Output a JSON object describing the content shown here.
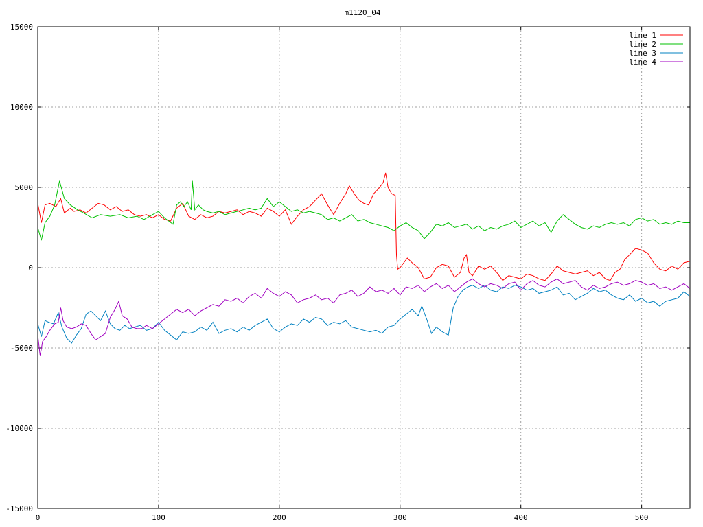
{
  "chart_data": {
    "type": "line",
    "title": "m1120_04",
    "xlabel": "",
    "ylabel": "",
    "xlim": [
      0,
      540
    ],
    "ylim": [
      -15000,
      15000
    ],
    "xticks": [
      0,
      100,
      200,
      300,
      400,
      500
    ],
    "yticks": [
      -15000,
      -10000,
      -5000,
      0,
      5000,
      10000,
      15000
    ],
    "grid": true,
    "legend_position": "top-right",
    "series": [
      {
        "name": "line 1",
        "color": "#ff0000",
        "x": [
          0,
          3,
          6,
          10,
          15,
          19,
          22,
          27,
          30,
          35,
          40,
          45,
          50,
          55,
          60,
          65,
          70,
          75,
          80,
          85,
          90,
          95,
          100,
          105,
          110,
          115,
          120,
          125,
          130,
          135,
          140,
          145,
          150,
          155,
          160,
          165,
          170,
          175,
          180,
          185,
          190,
          195,
          200,
          205,
          210,
          215,
          220,
          225,
          230,
          235,
          240,
          245,
          250,
          255,
          258,
          262,
          266,
          270,
          274,
          278,
          282,
          286,
          288,
          290,
          293,
          296,
          297,
          298,
          300,
          303,
          306,
          310,
          315,
          320,
          325,
          330,
          335,
          340,
          345,
          350,
          353,
          355,
          357,
          360,
          365,
          370,
          375,
          380,
          385,
          390,
          395,
          400,
          405,
          410,
          415,
          420,
          425,
          430,
          435,
          440,
          445,
          450,
          455,
          460,
          465,
          470,
          474,
          478,
          482,
          486,
          490,
          495,
          500,
          505,
          510,
          515,
          520,
          525,
          530,
          535,
          540
        ],
        "values": [
          4000,
          2800,
          3900,
          4000,
          3800,
          4300,
          3400,
          3700,
          3500,
          3600,
          3400,
          3700,
          4000,
          3900,
          3600,
          3800,
          3500,
          3600,
          3300,
          3200,
          3300,
          3100,
          3300,
          3000,
          2900,
          3700,
          4000,
          3200,
          3000,
          3300,
          3100,
          3200,
          3500,
          3400,
          3500,
          3600,
          3300,
          3500,
          3400,
          3200,
          3700,
          3500,
          3200,
          3600,
          2700,
          3200,
          3600,
          3800,
          4200,
          4600,
          3900,
          3300,
          4000,
          4600,
          5100,
          4600,
          4200,
          4000,
          3900,
          4600,
          4900,
          5300,
          5900,
          5000,
          4600,
          4500,
          800,
          -100,
          0,
          300,
          600,
          300,
          0,
          -700,
          -600,
          0,
          200,
          100,
          -600,
          -300,
          600,
          800,
          -300,
          -500,
          100,
          -100,
          100,
          -300,
          -800,
          -500,
          -600,
          -700,
          -400,
          -500,
          -700,
          -800,
          -400,
          100,
          -200,
          -300,
          -400,
          -300,
          -200,
          -500,
          -300,
          -700,
          -800,
          -300,
          -100,
          500,
          800,
          1200,
          1100,
          900,
          300,
          -100,
          -200,
          100,
          -100,
          300,
          400
        ]
      },
      {
        "name": "line 2",
        "color": "#00c000",
        "x": [
          0,
          3,
          6,
          10,
          14,
          18,
          22,
          27,
          33,
          38,
          45,
          52,
          60,
          68,
          75,
          82,
          88,
          95,
          100,
          105,
          112,
          115,
          118,
          121,
          124,
          127,
          128,
          130,
          133,
          137,
          140,
          145,
          150,
          155,
          160,
          165,
          170,
          175,
          180,
          185,
          190,
          195,
          200,
          205,
          210,
          215,
          220,
          225,
          230,
          235,
          240,
          245,
          250,
          255,
          260,
          265,
          270,
          275,
          280,
          285,
          290,
          295,
          300,
          305,
          310,
          315,
          320,
          325,
          330,
          335,
          340,
          345,
          350,
          355,
          360,
          365,
          370,
          375,
          380,
          385,
          390,
          395,
          400,
          405,
          410,
          415,
          420,
          425,
          430,
          435,
          440,
          445,
          450,
          455,
          460,
          465,
          470,
          475,
          480,
          485,
          490,
          495,
          500,
          505,
          510,
          515,
          520,
          525,
          530,
          535,
          540
        ],
        "values": [
          2500,
          1700,
          2800,
          3200,
          3900,
          5400,
          4300,
          3900,
          3600,
          3400,
          3100,
          3300,
          3200,
          3300,
          3100,
          3200,
          3000,
          3300,
          3500,
          3100,
          2700,
          3900,
          4100,
          3800,
          4100,
          3600,
          5400,
          3600,
          3900,
          3600,
          3500,
          3400,
          3500,
          3300,
          3400,
          3500,
          3600,
          3700,
          3600,
          3700,
          4300,
          3800,
          4100,
          3800,
          3500,
          3600,
          3400,
          3500,
          3400,
          3300,
          3000,
          3100,
          2900,
          3100,
          3300,
          2900,
          3000,
          2800,
          2700,
          2600,
          2500,
          2300,
          2600,
          2800,
          2500,
          2300,
          1800,
          2200,
          2700,
          2600,
          2800,
          2500,
          2600,
          2700,
          2400,
          2600,
          2300,
          2500,
          2400,
          2600,
          2700,
          2900,
          2500,
          2700,
          2900,
          2600,
          2800,
          2200,
          2900,
          3300,
          3000,
          2700,
          2500,
          2400,
          2600,
          2500,
          2700,
          2800,
          2700,
          2800,
          2600,
          3000,
          3100,
          2900,
          3000,
          2700,
          2800,
          2700,
          2900,
          2800,
          2800
        ]
      },
      {
        "name": "line 3",
        "color": "#0080c0",
        "x": [
          0,
          3,
          6,
          9,
          13,
          17,
          20,
          24,
          28,
          32,
          36,
          40,
          44,
          48,
          52,
          56,
          60,
          64,
          68,
          72,
          76,
          80,
          85,
          90,
          95,
          100,
          105,
          110,
          115,
          120,
          125,
          130,
          135,
          140,
          145,
          150,
          155,
          160,
          165,
          170,
          175,
          180,
          185,
          190,
          195,
          200,
          205,
          210,
          215,
          220,
          225,
          230,
          235,
          240,
          245,
          250,
          255,
          260,
          265,
          270,
          275,
          280,
          285,
          290,
          295,
          300,
          305,
          310,
          315,
          318,
          322,
          326,
          330,
          335,
          340,
          344,
          348,
          352,
          356,
          360,
          365,
          370,
          375,
          380,
          385,
          390,
          395,
          400,
          405,
          410,
          415,
          420,
          425,
          430,
          435,
          440,
          445,
          450,
          455,
          460,
          465,
          470,
          475,
          480,
          485,
          490,
          495,
          500,
          505,
          510,
          515,
          520,
          525,
          530,
          535,
          540
        ],
        "values": [
          -3500,
          -4300,
          -3300,
          -3400,
          -3500,
          -2800,
          -3700,
          -4400,
          -4700,
          -4200,
          -3800,
          -2900,
          -2700,
          -3000,
          -3300,
          -2700,
          -3500,
          -3800,
          -3900,
          -3600,
          -3800,
          -3700,
          -3600,
          -3900,
          -3800,
          -3400,
          -3900,
          -4200,
          -4500,
          -4000,
          -4100,
          -4000,
          -3700,
          -3900,
          -3400,
          -4100,
          -3900,
          -3800,
          -4000,
          -3700,
          -3900,
          -3600,
          -3400,
          -3200,
          -3800,
          -4000,
          -3700,
          -3500,
          -3600,
          -3200,
          -3400,
          -3100,
          -3200,
          -3600,
          -3400,
          -3500,
          -3300,
          -3700,
          -3800,
          -3900,
          -4000,
          -3900,
          -4100,
          -3700,
          -3600,
          -3200,
          -2900,
          -2600,
          -3000,
          -2400,
          -3200,
          -4100,
          -3700,
          -4000,
          -4200,
          -2500,
          -1800,
          -1400,
          -1200,
          -1100,
          -1300,
          -1100,
          -1400,
          -1500,
          -1200,
          -1300,
          -1100,
          -1200,
          -1400,
          -1300,
          -1600,
          -1500,
          -1400,
          -1200,
          -1700,
          -1600,
          -2000,
          -1800,
          -1600,
          -1300,
          -1500,
          -1400,
          -1700,
          -1900,
          -2000,
          -1700,
          -2100,
          -1900,
          -2200,
          -2100,
          -2400,
          -2100,
          -2000,
          -1900,
          -1500,
          -1800
        ]
      },
      {
        "name": "line 4",
        "color": "#a000c0",
        "x": [
          0,
          2,
          4,
          7,
          10,
          14,
          17,
          19,
          21,
          24,
          28,
          32,
          36,
          40,
          44,
          48,
          52,
          56,
          60,
          64,
          67,
          70,
          74,
          78,
          82,
          86,
          90,
          95,
          100,
          105,
          110,
          115,
          120,
          125,
          130,
          135,
          140,
          145,
          150,
          155,
          160,
          165,
          170,
          175,
          180,
          185,
          190,
          195,
          200,
          205,
          210,
          215,
          220,
          225,
          230,
          235,
          240,
          245,
          250,
          255,
          260,
          265,
          270,
          275,
          280,
          285,
          290,
          295,
          300,
          305,
          310,
          315,
          320,
          325,
          330,
          335,
          340,
          345,
          350,
          355,
          360,
          365,
          370,
          375,
          380,
          385,
          390,
          395,
          400,
          405,
          410,
          415,
          420,
          425,
          430,
          435,
          440,
          445,
          450,
          455,
          460,
          465,
          470,
          475,
          480,
          485,
          490,
          495,
          500,
          505,
          510,
          515,
          520,
          525,
          530,
          535,
          540
        ],
        "values": [
          -4200,
          -5500,
          -4600,
          -4300,
          -3900,
          -3500,
          -3400,
          -2500,
          -3300,
          -3700,
          -3800,
          -3700,
          -3500,
          -3600,
          -4100,
          -4500,
          -4300,
          -4100,
          -3100,
          -2600,
          -2100,
          -3000,
          -3200,
          -3700,
          -3800,
          -3800,
          -3600,
          -3800,
          -3500,
          -3200,
          -2900,
          -2600,
          -2800,
          -2600,
          -3000,
          -2700,
          -2500,
          -2300,
          -2400,
          -2000,
          -2100,
          -1900,
          -2200,
          -1800,
          -1600,
          -1900,
          -1300,
          -1600,
          -1800,
          -1500,
          -1700,
          -2200,
          -2000,
          -1900,
          -1700,
          -2000,
          -1900,
          -2200,
          -1700,
          -1600,
          -1400,
          -1800,
          -1600,
          -1200,
          -1500,
          -1400,
          -1600,
          -1300,
          -1700,
          -1200,
          -1300,
          -1100,
          -1500,
          -1200,
          -1000,
          -1300,
          -1100,
          -1500,
          -1200,
          -900,
          -700,
          -1000,
          -1200,
          -1000,
          -1100,
          -1300,
          -1000,
          -900,
          -1400,
          -1000,
          -800,
          -1100,
          -1200,
          -900,
          -700,
          -1000,
          -900,
          -800,
          -1200,
          -1400,
          -1100,
          -1300,
          -1200,
          -1000,
          -900,
          -1100,
          -1000,
          -800,
          -900,
          -1100,
          -1000,
          -1300,
          -1200,
          -1400,
          -1200,
          -1000,
          -1300
        ]
      }
    ]
  }
}
